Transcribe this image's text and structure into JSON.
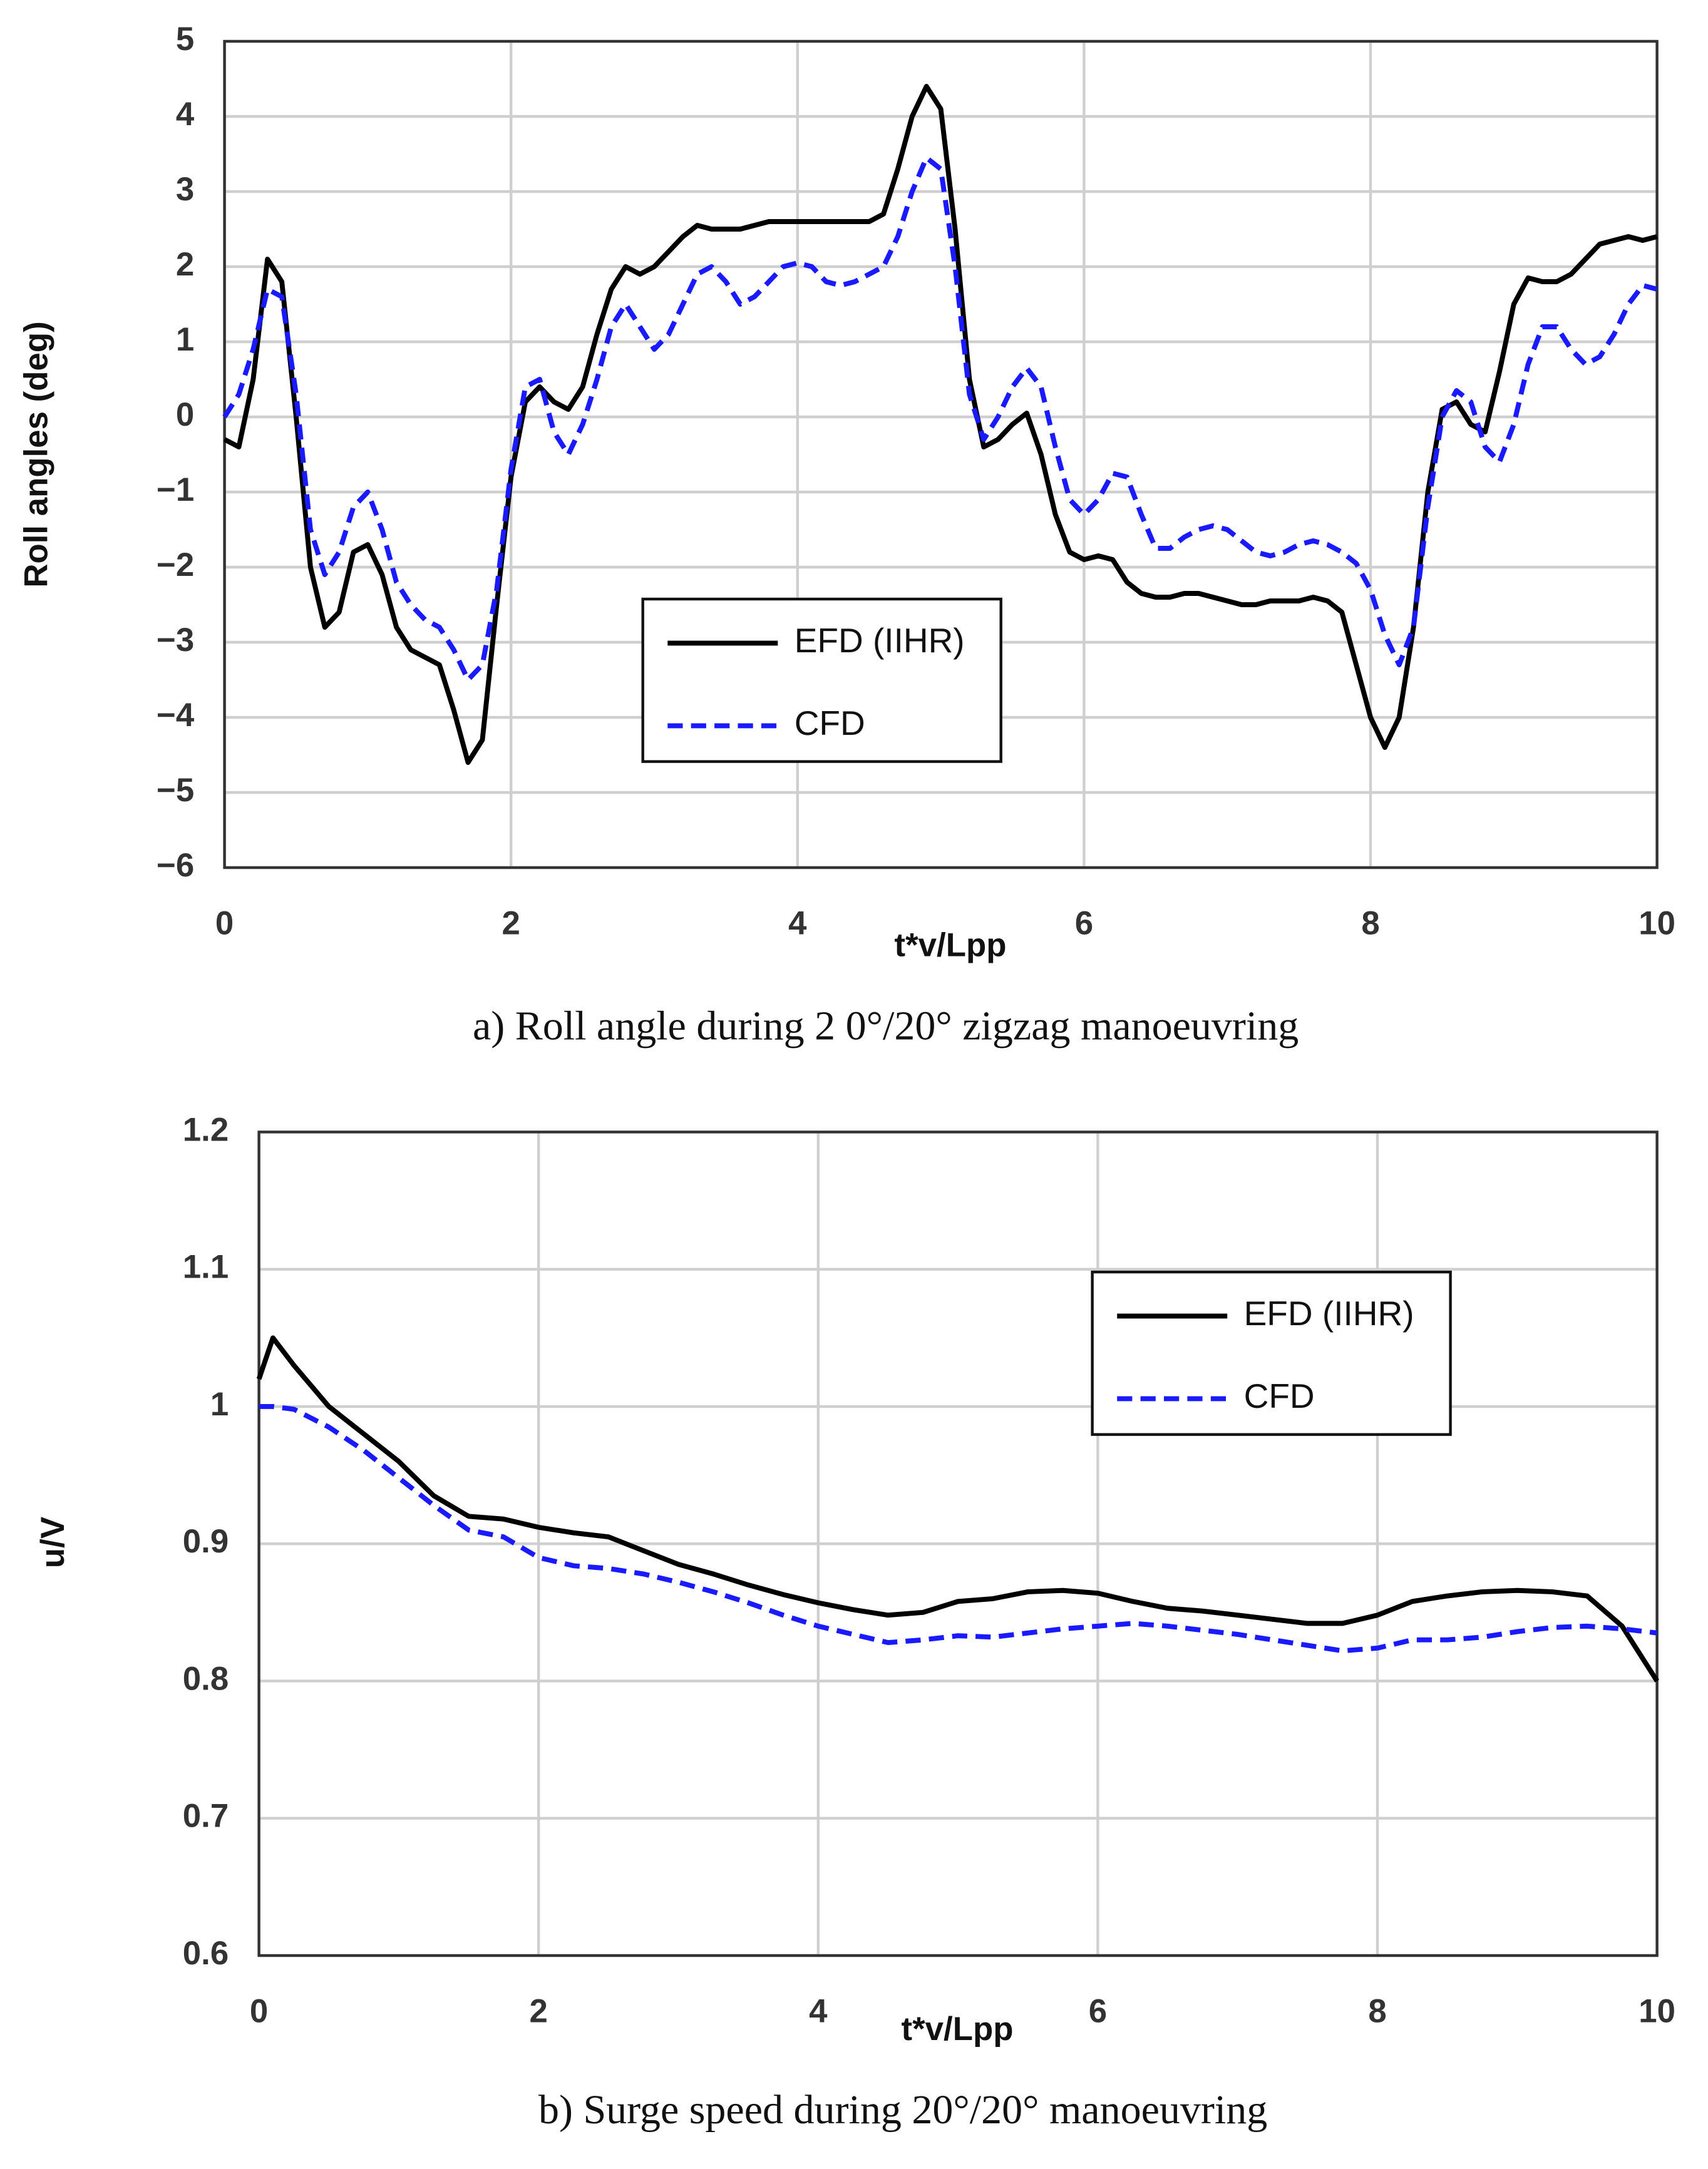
{
  "chart_data": [
    {
      "type": "line",
      "caption": "a) Roll angle during 2 0°/20° zigzag manoeuvring",
      "xlabel": "t*v/Lpp",
      "ylabel": "Roll angles (deg)",
      "x": [
        0,
        0.1,
        0.2,
        0.3,
        0.4,
        0.5,
        0.6,
        0.7,
        0.8,
        0.9,
        1,
        1.1,
        1.2,
        1.3,
        1.4,
        1.5,
        1.6,
        1.7,
        1.8,
        1.9,
        2,
        2.1,
        2.2,
        2.3,
        2.4,
        2.5,
        2.6,
        2.7,
        2.8,
        2.9,
        3,
        3.1,
        3.2,
        3.3,
        3.4,
        3.5,
        3.6,
        3.7,
        3.8,
        3.9,
        4,
        4.1,
        4.2,
        4.3,
        4.4,
        4.5,
        4.6,
        4.7,
        4.8,
        4.9,
        5,
        5.1,
        5.2,
        5.3,
        5.4,
        5.5,
        5.6,
        5.7,
        5.8,
        5.9,
        6,
        6.1,
        6.2,
        6.3,
        6.4,
        6.5,
        6.6,
        6.7,
        6.8,
        6.9,
        7,
        7.1,
        7.2,
        7.3,
        7.4,
        7.5,
        7.6,
        7.7,
        7.8,
        7.9,
        8,
        8.1,
        8.2,
        8.3,
        8.4,
        8.5,
        8.6,
        8.7,
        8.8,
        8.9,
        9,
        9.1,
        9.2,
        9.3,
        9.4,
        9.5,
        9.6,
        9.7,
        9.8,
        9.9,
        10
      ],
      "series": [
        {
          "name": "EFD (IIHR)",
          "color": "#000000",
          "dash": false,
          "values": [
            -0.3,
            -0.4,
            0.5,
            2.1,
            1.8,
            0.0,
            -2.0,
            -2.8,
            -2.6,
            -1.8,
            -1.7,
            -2.1,
            -2.8,
            -3.1,
            -3.2,
            -3.3,
            -3.9,
            -4.6,
            -4.3,
            -2.5,
            -0.8,
            0.2,
            0.4,
            0.2,
            0.1,
            0.4,
            1.1,
            1.7,
            2.0,
            1.9,
            2.0,
            2.2,
            2.4,
            2.55,
            2.5,
            2.5,
            2.5,
            2.55,
            2.6,
            2.6,
            2.6,
            2.6,
            2.6,
            2.6,
            2.6,
            2.6,
            2.7,
            3.3,
            4.0,
            4.4,
            4.1,
            2.5,
            0.5,
            -0.4,
            -0.3,
            -0.1,
            0.05,
            -0.5,
            -1.3,
            -1.8,
            -1.9,
            -1.85,
            -1.9,
            -2.2,
            -2.35,
            -2.4,
            -2.4,
            -2.35,
            -2.35,
            -2.4,
            -2.45,
            -2.5,
            -2.5,
            -2.45,
            -2.45,
            -2.45,
            -2.4,
            -2.45,
            -2.6,
            -3.3,
            -4.0,
            -4.4,
            -4.0,
            -2.8,
            -1.0,
            0.1,
            0.2,
            -0.1,
            -0.2,
            0.6,
            1.5,
            1.85,
            1.8,
            1.8,
            1.9,
            2.1,
            2.3,
            2.35,
            2.4,
            2.35,
            2.4
          ]
        },
        {
          "name": "CFD",
          "color": "#1a1aff",
          "dash": true,
          "values": [
            0.0,
            0.3,
            0.9,
            1.7,
            1.6,
            0.3,
            -1.5,
            -2.1,
            -1.8,
            -1.2,
            -1.0,
            -1.5,
            -2.2,
            -2.5,
            -2.7,
            -2.8,
            -3.1,
            -3.5,
            -3.3,
            -2.3,
            -0.7,
            0.4,
            0.5,
            -0.2,
            -0.5,
            -0.1,
            0.5,
            1.2,
            1.5,
            1.2,
            0.9,
            1.1,
            1.5,
            1.9,
            2.0,
            1.8,
            1.5,
            1.6,
            1.8,
            2.0,
            2.05,
            2.0,
            1.8,
            1.75,
            1.8,
            1.9,
            2.0,
            2.4,
            3.0,
            3.45,
            3.3,
            2.0,
            0.3,
            -0.3,
            0.0,
            0.4,
            0.65,
            0.4,
            -0.4,
            -1.1,
            -1.3,
            -1.1,
            -0.75,
            -0.8,
            -1.3,
            -1.75,
            -1.75,
            -1.6,
            -1.5,
            -1.45,
            -1.5,
            -1.65,
            -1.8,
            -1.85,
            -1.8,
            -1.7,
            -1.65,
            -1.7,
            -1.8,
            -1.95,
            -2.3,
            -2.9,
            -3.3,
            -2.8,
            -1.2,
            0.0,
            0.35,
            0.2,
            -0.4,
            -0.6,
            -0.1,
            0.7,
            1.2,
            1.2,
            0.9,
            0.7,
            0.8,
            1.1,
            1.5,
            1.75,
            1.7
          ]
        }
      ],
      "xlim": [
        0,
        10
      ],
      "xticks": [
        0,
        2,
        4,
        6,
        8,
        10
      ],
      "ylim": [
        -6,
        5
      ],
      "yticks": [
        {
          "value": -6,
          "label": "−6"
        },
        {
          "value": -5,
          "label": "−5"
        },
        {
          "value": -4,
          "label": "−4"
        },
        {
          "value": -3,
          "label": "−3"
        },
        {
          "value": -2,
          "label": "−2"
        },
        {
          "value": -1,
          "label": "−1"
        },
        0,
        1,
        2,
        3,
        4,
        5
      ],
      "grid": true,
      "legend": "center"
    },
    {
      "type": "line",
      "caption": "b) Surge speed during 20°/20° manoeuvring",
      "xlabel": "t*v/Lpp",
      "ylabel": "u/V",
      "x": [
        0,
        0.1,
        0.25,
        0.5,
        0.75,
        1,
        1.25,
        1.5,
        1.75,
        2,
        2.25,
        2.5,
        2.75,
        3,
        3.25,
        3.5,
        3.75,
        4,
        4.25,
        4.5,
        4.75,
        5,
        5.25,
        5.5,
        5.75,
        6,
        6.25,
        6.5,
        6.75,
        7,
        7.25,
        7.5,
        7.75,
        8,
        8.25,
        8.5,
        8.75,
        9,
        9.25,
        9.5,
        9.75,
        10
      ],
      "series": [
        {
          "name": "EFD (IIHR)",
          "color": "#000000",
          "dash": false,
          "values": [
            1.02,
            1.05,
            1.03,
            1.0,
            0.98,
            0.96,
            0.935,
            0.92,
            0.918,
            0.912,
            0.908,
            0.905,
            0.895,
            0.885,
            0.878,
            0.87,
            0.863,
            0.857,
            0.852,
            0.848,
            0.85,
            0.858,
            0.86,
            0.865,
            0.866,
            0.864,
            0.858,
            0.853,
            0.851,
            0.848,
            0.845,
            0.842,
            0.842,
            0.848,
            0.858,
            0.862,
            0.865,
            0.866,
            0.865,
            0.862,
            0.84,
            0.8
          ]
        },
        {
          "name": "CFD",
          "color": "#1a1aff",
          "dash": true,
          "values": [
            1.0,
            1.0,
            0.998,
            0.985,
            0.968,
            0.948,
            0.928,
            0.91,
            0.905,
            0.89,
            0.884,
            0.882,
            0.878,
            0.872,
            0.865,
            0.857,
            0.848,
            0.84,
            0.834,
            0.828,
            0.83,
            0.833,
            0.832,
            0.835,
            0.838,
            0.84,
            0.842,
            0.84,
            0.837,
            0.834,
            0.83,
            0.826,
            0.822,
            0.824,
            0.83,
            0.83,
            0.832,
            0.836,
            0.839,
            0.84,
            0.838,
            0.835
          ]
        }
      ],
      "xlim": [
        0,
        10
      ],
      "xticks": [
        0,
        2,
        4,
        6,
        8,
        10
      ],
      "ylim": [
        0.6,
        1.2
      ],
      "yticks": [
        0.6,
        0.7,
        0.8,
        0.9,
        1,
        1.1,
        1.2
      ],
      "grid": true,
      "legend": "upper right"
    }
  ]
}
